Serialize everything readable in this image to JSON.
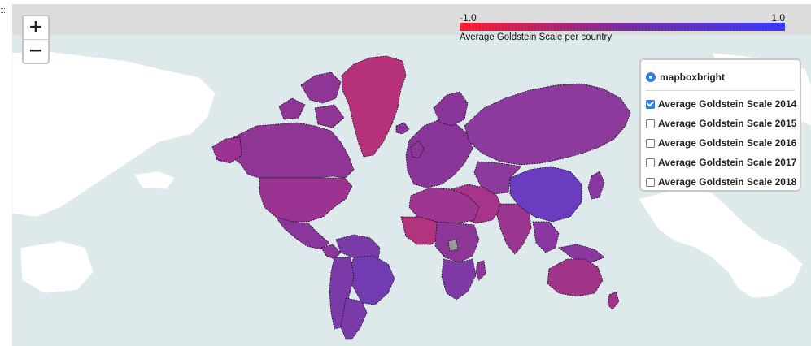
{
  "map": {
    "zoom_in_label": "+",
    "zoom_out_label": "−",
    "ocean_color": "#dde9ea"
  },
  "colorbar": {
    "min_label": "-1.0",
    "max_label": "1.0",
    "caption": "Average Goldstein Scale per country",
    "color_low": "#ff1f33",
    "color_mid": "#7a2fa0",
    "color_high": "#3b3bff"
  },
  "layers": {
    "base": {
      "label": "mapboxbright",
      "selected": true
    },
    "overlays": [
      {
        "label": "Average Goldstein Scale 2014",
        "checked": true
      },
      {
        "label": "Average Goldstein Scale 2015",
        "checked": false
      },
      {
        "label": "Average Goldstein Scale 2016",
        "checked": false
      },
      {
        "label": "Average Goldstein Scale 2017",
        "checked": false
      },
      {
        "label": "Average Goldstein Scale 2018",
        "checked": false
      }
    ]
  },
  "country_colors": {
    "greenland": "#b5327a",
    "canada": "#8e3596",
    "usa": "#9a3392",
    "mexico": "#8a369a",
    "south_america": "#7a3aa8",
    "brazil": "#703cb0",
    "europe": "#8a3599",
    "russia": "#8c3a9c",
    "china": "#6a3dc0",
    "india": "#9a3590",
    "middle_east": "#a8348a",
    "africa_north": "#9e3590",
    "africa_west": "#b3347e",
    "africa_central": "#8c3798",
    "africa_south": "#7f39a4",
    "australia": "#a03488",
    "southeast_asia": "#8a37a0",
    "japan": "#8836a0",
    "unknown": "#9a9a9a"
  }
}
